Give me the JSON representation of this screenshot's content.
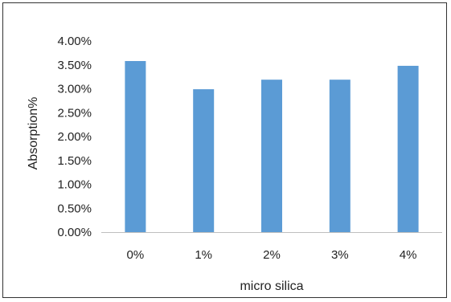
{
  "chart_data": {
    "type": "bar",
    "categories": [
      "0%",
      "1%",
      "2%",
      "3%",
      "4%"
    ],
    "values": [
      3.58,
      2.99,
      3.19,
      3.19,
      3.48
    ],
    "value_unit": "%",
    "xlabel": "micro silica",
    "ylabel": "Absorption%",
    "ylim": [
      0,
      4.0
    ],
    "y_ticks": [
      "0.00%",
      "0.50%",
      "1.00%",
      "1.50%",
      "2.00%",
      "2.50%",
      "3.00%",
      "3.50%",
      "4.00%"
    ],
    "grid": false,
    "legend": "none",
    "bar_color": "#5B9BD5"
  }
}
